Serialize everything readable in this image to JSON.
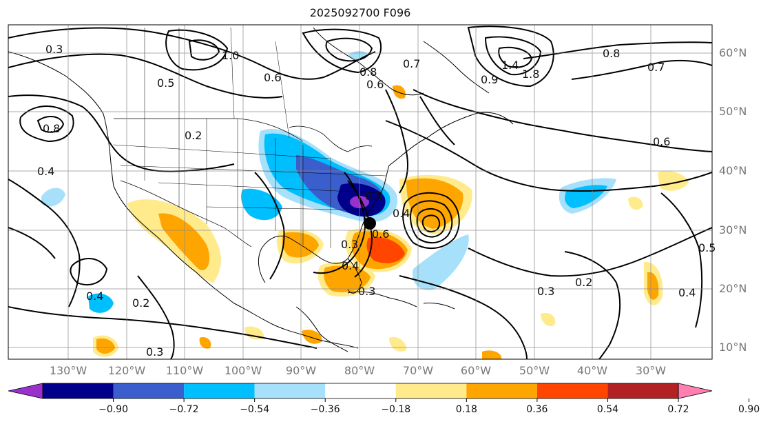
{
  "title": "2025092700 F096",
  "lat_labels": [
    "60°N",
    "50°N",
    "40°N",
    "30°N",
    "20°N",
    "10°N"
  ],
  "lon_labels": [
    "130°W",
    "120°W",
    "110°W",
    "100°W",
    "90°W",
    "80°W",
    "70°W",
    "60°W",
    "50°W",
    "40°W",
    "30°W"
  ],
  "contour_labels": [
    "0.3",
    "1.0",
    "0.8",
    "0.5",
    "0.6",
    "0.2",
    "0.4",
    "0.8",
    "0.6",
    "0.7",
    "1.4",
    "1.8",
    "0.8",
    "0.7",
    "0.6",
    "0.9",
    "0.5",
    "0.4",
    "0.6",
    "0.4",
    "0.3",
    "0.3",
    "0.2",
    "0.3",
    "0.4",
    "0.2",
    "0.5",
    "0.4",
    "0.3"
  ],
  "colorbar": {
    "ticks": [
      "−0.90",
      "−0.72",
      "−0.54",
      "−0.36",
      "−0.18",
      "0.18",
      "0.36",
      "0.54",
      "0.72",
      "0.90"
    ],
    "colors": [
      "#9932cc",
      "#00008b",
      "#3a5fcd",
      "#00bfff",
      "#a6e0fa",
      "#ffffff",
      "#ffeb8b",
      "#ffa500",
      "#ff4500",
      "#b22222",
      "#ff7fb0"
    ]
  },
  "legend_colors": {
    "purple": "#9932cc",
    "navy": "#00008b",
    "royalblue": "#3a5fcd",
    "deepskyblue": "#00bfff",
    "lightblue": "#a6e0fa",
    "lightyellow": "#ffeb8b",
    "orange": "#ffa500",
    "orangered": "#ff4500",
    "firebrick": "#b22222",
    "pink": "#ff7fb0"
  }
}
